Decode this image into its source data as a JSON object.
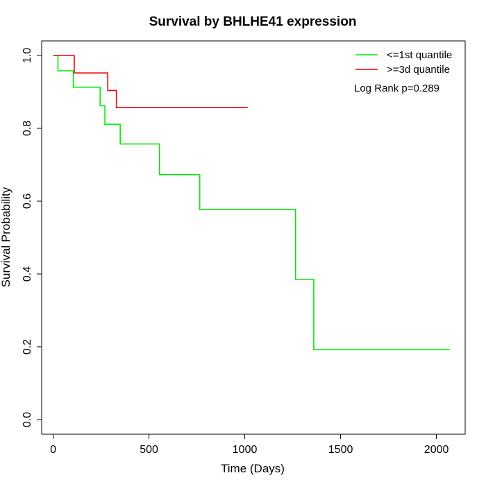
{
  "chart_data": {
    "type": "line",
    "step": true,
    "title": "Survival by BHLHE41 expression",
    "xlabel": "Time (Days)",
    "ylabel": "Survival Probability",
    "xlim": [
      -60,
      2150
    ],
    "ylim": [
      -0.04,
      1.04
    ],
    "xticks": [
      0,
      500,
      1000,
      1500,
      2000
    ],
    "xtick_labels": [
      "0",
      "500",
      "1000",
      "1500",
      "2000"
    ],
    "yticks": [
      0.0,
      0.2,
      0.4,
      0.6,
      0.8,
      1.0
    ],
    "ytick_labels": [
      "0.0",
      "0.2",
      "0.4",
      "0.6",
      "0.8",
      "1.0"
    ],
    "grid": false,
    "legend_position": "top-right",
    "annotation": "Log Rank p=0.289",
    "series": [
      {
        "name": "<=1st quantile",
        "color": "#00ee00",
        "points": [
          [
            0,
            1.0
          ],
          [
            25,
            0.958
          ],
          [
            105,
            0.913
          ],
          [
            245,
            0.862
          ],
          [
            270,
            0.811
          ],
          [
            350,
            0.757
          ],
          [
            555,
            0.673
          ],
          [
            765,
            0.577
          ],
          [
            1265,
            0.385
          ],
          [
            1360,
            0.192
          ],
          [
            2070,
            0.192
          ]
        ]
      },
      {
        "name": ">=3d quantile",
        "color": "#ee0000",
        "points": [
          [
            0,
            1.0
          ],
          [
            110,
            0.952
          ],
          [
            285,
            0.904
          ],
          [
            330,
            0.857
          ],
          [
            1015,
            0.857
          ]
        ]
      }
    ]
  }
}
